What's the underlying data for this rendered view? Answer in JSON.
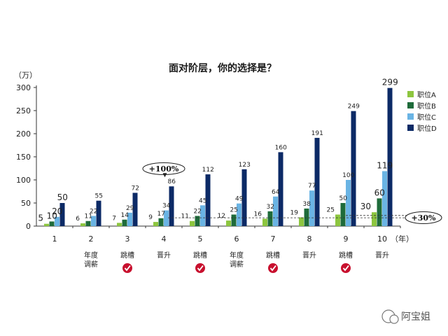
{
  "chart_data": {
    "type": "bar",
    "title": "面对阶层，你的选择是？",
    "ylabel": "（万）",
    "xunit": "（年）",
    "ylim": [
      0,
      300
    ],
    "yticks": [
      0,
      50,
      100,
      150,
      200,
      250,
      300
    ],
    "categories": [
      "1",
      "2",
      "3",
      "4",
      "5",
      "6",
      "7",
      "8",
      "9",
      "10"
    ],
    "series": [
      {
        "name": "职位A",
        "color": "#8dc63f",
        "values": [
          5,
          6,
          7,
          9,
          11,
          12,
          16,
          19,
          25,
          30
        ]
      },
      {
        "name": "职位B",
        "color": "#1e6b3a",
        "values": [
          10,
          11,
          14,
          17,
          22,
          25,
          32,
          38,
          50,
          60
        ]
      },
      {
        "name": "职位C",
        "color": "#6ab4e4",
        "values": [
          20,
          22,
          29,
          34,
          45,
          49,
          64,
          77,
          100,
          119
        ]
      },
      {
        "name": "职位D",
        "color": "#0c2a66",
        "values": [
          50,
          55,
          72,
          86,
          112,
          123,
          160,
          191,
          249,
          299
        ]
      }
    ],
    "grid": false,
    "legend": "right"
  },
  "annotations": {
    "notes": [
      "",
      "年度\n调薪",
      "跳槽",
      "晋升",
      "跳槽",
      "年度\n调薪",
      "跳槽",
      "晋升",
      "跳槽",
      "晋升"
    ],
    "check_marks": [
      false,
      false,
      true,
      false,
      true,
      false,
      true,
      false,
      true,
      false
    ],
    "callout_left": "+100%",
    "callout_right": "+30%"
  },
  "watermark": "阿宝姐"
}
